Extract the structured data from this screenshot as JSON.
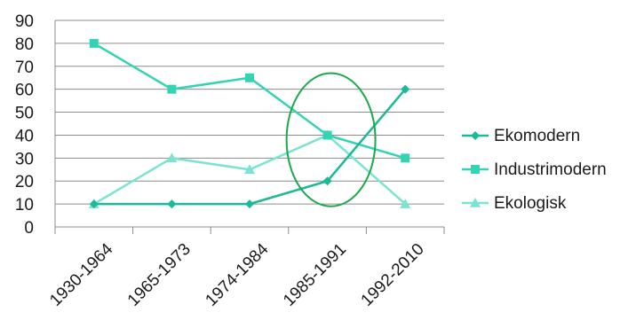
{
  "chart_data": {
    "type": "line",
    "categories": [
      "1930-1964",
      "1965-1973",
      "1974-1984",
      "1985-1991",
      "1992-2010"
    ],
    "series": [
      {
        "name": "Ekomodern",
        "values": [
          10,
          10,
          10,
          20,
          60
        ],
        "color": "#1aba96",
        "marker": "diamond"
      },
      {
        "name": "Industrimodern",
        "values": [
          80,
          60,
          65,
          40,
          30
        ],
        "color": "#33d4b4",
        "marker": "square"
      },
      {
        "name": "Ekologisk",
        "values": [
          10,
          30,
          25,
          40,
          10
        ],
        "color": "#7ae3d2",
        "marker": "triangle"
      }
    ],
    "ylim": [
      0,
      90
    ],
    "y_ticks": [
      "0",
      "10",
      "20",
      "30",
      "40",
      "50",
      "60",
      "70",
      "80",
      "90"
    ],
    "grid": "horizontal",
    "legend_position": "right",
    "annotation": {
      "shape": "ellipse",
      "category": "1985-1991",
      "color": "#1aa84a"
    }
  }
}
